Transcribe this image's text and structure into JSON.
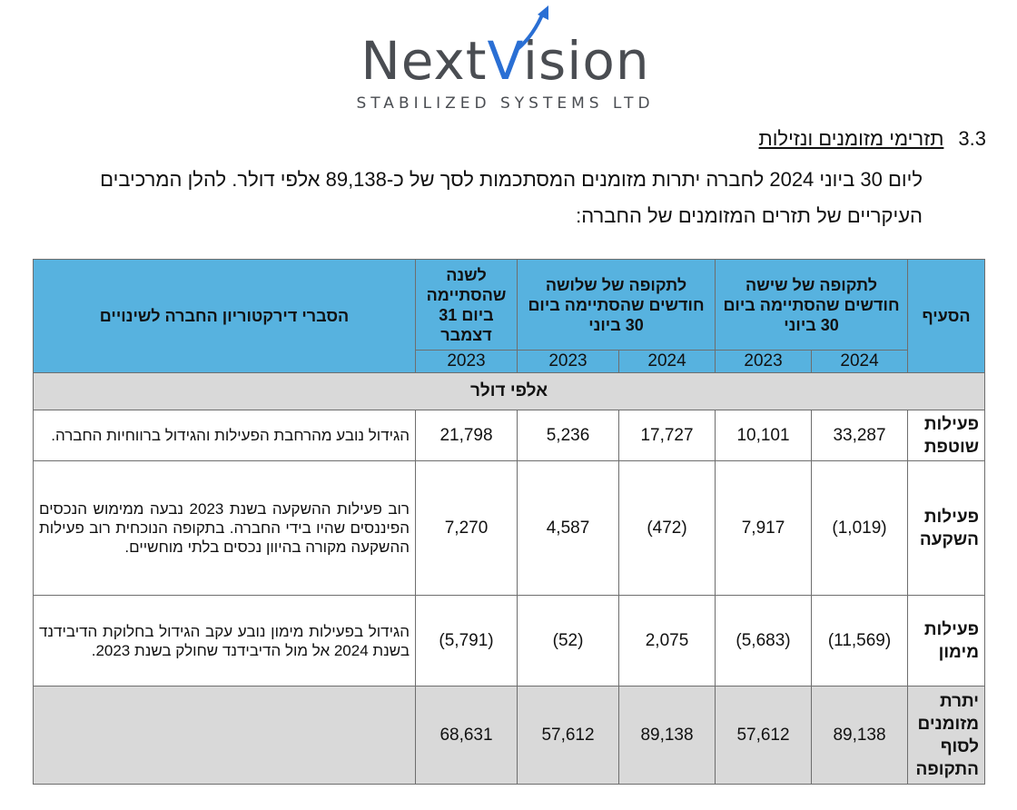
{
  "logo": {
    "name_part1": "Next",
    "name_part2": "V",
    "name_part3": "ision",
    "subtitle": "STABILIZED SYSTEMS LTD",
    "accent_color": "#2a6fd4",
    "text_color": "#4a4d52"
  },
  "section": {
    "number": "3.3",
    "title": "תזרימי מזומנים ונזילות",
    "paragraph": "ליום 30 ביוני 2024 לחברה יתרות מזומנים המסתכמות לסך של כ-89,138 אלפי דולר. להלן המרכיבים העיקריים של תזרים המזומנים של החברה:"
  },
  "table": {
    "header_color": "#57b2df",
    "shade_color": "#d9d9d9",
    "headers": {
      "item": "הסעיף",
      "six_months": "לתקופה של שישה חודשים שהסתיימה ביום 30 ביוני",
      "three_months": "לתקופה של שלושה חודשים שהסתיימה ביום 30 ביוני",
      "year": "לשנה שהסתיימה ביום 31 דצמבר",
      "explanation": "הסברי דירקטוריון החברה לשינויים"
    },
    "years": {
      "six_2024": "2024",
      "six_2023": "2023",
      "three_2024": "2024",
      "three_2023": "2023",
      "year_2023": "2023"
    },
    "unit": "אלפי דולר",
    "rows": [
      {
        "label": "פעילות שוטפת",
        "six_2024": "33,287",
        "six_2023": "10,101",
        "three_2024": "17,727",
        "three_2023": "5,236",
        "year_2023": "21,798",
        "explanation": "הגידול נובע מהרחבת הפעילות והגידול ברווחיות החברה."
      },
      {
        "label": "פעילות השקעה",
        "six_2024": "(1,019)",
        "six_2023": "7,917",
        "three_2024": "(472)",
        "three_2023": "4,587",
        "year_2023": "7,270",
        "explanation": "רוב פעילות ההשקעה בשנת 2023 נבעה ממימוש הנכסים הפיננסים שהיו בידי החברה. בתקופה הנוכחית רוב פעילות ההשקעה מקורה בהיוון נכסים בלתי מוחשיים."
      },
      {
        "label": "פעילות מימון",
        "six_2024": "(11,569)",
        "six_2023": "(5,683)",
        "three_2024": "2,075",
        "three_2023": "(52)",
        "year_2023": "(5,791)",
        "explanation": "הגידול בפעילות מימון נובע עקב הגידול בחלוקת הדיבידנד בשנת 2024 אל מול הדיבידנד שחולק בשנת 2023."
      }
    ],
    "total": {
      "label": "יתרת מזומנים לסוף התקופה",
      "six_2024": "89,138",
      "six_2023": "57,612",
      "three_2024": "89,138",
      "three_2023": "57,612",
      "year_2023": "68,631",
      "explanation": ""
    }
  }
}
